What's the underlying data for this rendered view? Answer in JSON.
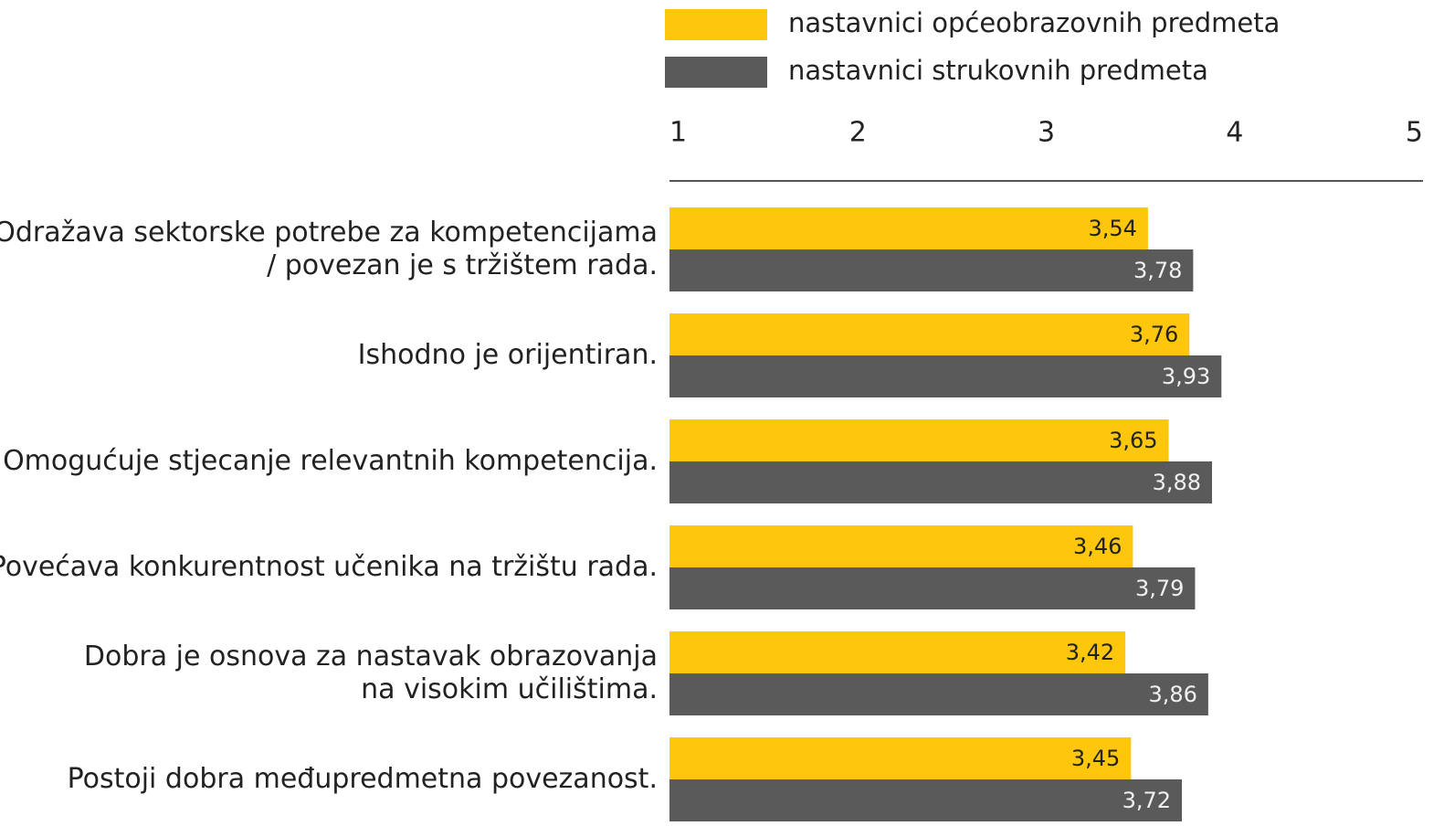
{
  "chart_data": {
    "type": "barh",
    "categories": [
      [
        "Odražava sektorske potrebe za kompetencijama",
        "/ povezan je s tržištem rada."
      ],
      [
        "Ishodno je orijentiran."
      ],
      [
        "Omogućuje stjecanje relevantnih kompetencija."
      ],
      [
        "Povećava konkurentnost učenika na tržištu rada."
      ],
      [
        "Dobra je osnova za nastavak obrazovanja",
        "na visokim učilištima."
      ],
      [
        "Postoji dobra međupredmetna povezanost."
      ]
    ],
    "series": [
      {
        "name": "nastavnici općeobrazovnih predmeta",
        "color": "#fec70b",
        "label_color": "#222222",
        "values": [
          3.54,
          3.76,
          3.65,
          3.46,
          3.42,
          3.45
        ],
        "value_labels": [
          "3,54",
          "3,76",
          "3,65",
          "3,46",
          "3,42",
          "3,45"
        ]
      },
      {
        "name": "nastavnici strukovnih predmeta",
        "color": "#5a5a5a",
        "label_color": "#f0f0f0",
        "values": [
          3.78,
          3.93,
          3.88,
          3.79,
          3.86,
          3.72
        ],
        "value_labels": [
          "3,78",
          "3,93",
          "3,88",
          "3,79",
          "3,86",
          "3,72"
        ]
      }
    ],
    "xlim": [
      1,
      5
    ],
    "xticks": [
      1,
      2,
      3,
      4,
      5
    ],
    "legend": "top"
  }
}
